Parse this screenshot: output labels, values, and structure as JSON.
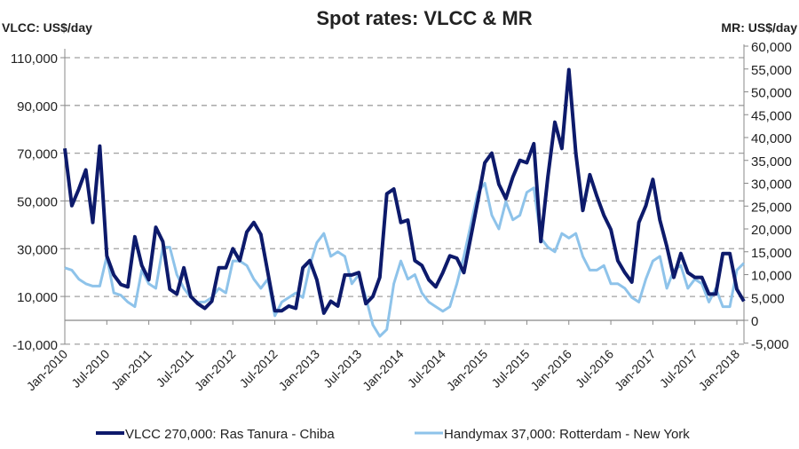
{
  "chart_data": {
    "type": "line",
    "title": "Spot rates: VLCC & MR",
    "ylabel_left": "VLCC: US$/day",
    "ylabel_right": "MR: US$/day",
    "ylim_left": [
      -10000,
      110000
    ],
    "ylim_right": [
      -5000,
      60000
    ],
    "yticks_left": [
      "-10,000",
      "10,000",
      "30,000",
      "50,000",
      "70,000",
      "90,000",
      "110,000"
    ],
    "yticks_left_values": [
      -10000,
      10000,
      30000,
      50000,
      70000,
      90000,
      110000
    ],
    "yticks_right": [
      "-5,000",
      "0",
      "5,000",
      "10,000",
      "15,000",
      "20,000",
      "25,000",
      "30,000",
      "35,000",
      "40,000",
      "45,000",
      "50,000",
      "55,000",
      "60,000"
    ],
    "yticks_right_values": [
      -5000,
      0,
      5000,
      10000,
      15000,
      20000,
      25000,
      30000,
      35000,
      40000,
      45000,
      50000,
      55000,
      60000
    ],
    "xticks": [
      "Jan-2010",
      "Jul-2010",
      "Jan-2011",
      "Jul-2011",
      "Jan-2012",
      "Jul-2012",
      "Jan-2013",
      "Jul-2013",
      "Jan-2014",
      "Jul-2014",
      "Jan-2015",
      "Jul-2015",
      "Jan-2016",
      "Jul-2016",
      "Jan-2017",
      "Jul-2017",
      "Jan-2018"
    ],
    "grid": "horizontal dashed",
    "legend": "bottom",
    "x_start": "Jan-2010",
    "x_frequency": "monthly",
    "series": [
      {
        "name": "VLCC 270,000: Ras Tanura - Chiba",
        "axis": "left",
        "color": "#0d1a6b",
        "values": [
          72000,
          48000,
          55000,
          63000,
          41000,
          73000,
          27000,
          19000,
          15000,
          14000,
          35000,
          23000,
          17000,
          39000,
          33000,
          13000,
          11000,
          22000,
          10000,
          7000,
          5000,
          8000,
          22000,
          22000,
          30000,
          25000,
          37000,
          41000,
          36000,
          20000,
          4000,
          4000,
          6000,
          5000,
          22000,
          25000,
          17000,
          3000,
          8000,
          6000,
          19000,
          19000,
          20000,
          7000,
          10000,
          18000,
          53000,
          55000,
          41000,
          42000,
          25000,
          23000,
          17000,
          14000,
          20000,
          27000,
          26000,
          20000,
          35000,
          50000,
          66000,
          70000,
          57000,
          51000,
          60000,
          67000,
          66000,
          74000,
          33000,
          60000,
          83000,
          72000,
          105000,
          70000,
          46000,
          61000,
          52000,
          44000,
          38000,
          25000,
          20000,
          16000,
          41000,
          48000,
          59000,
          42000,
          31000,
          18000,
          28000,
          20000,
          18000,
          18000,
          11000,
          11000,
          28000,
          28000,
          13000,
          8000
        ]
      },
      {
        "name": "Handymax 37,000: Rotterdam - New York",
        "axis": "right",
        "color": "#8ec3ea",
        "values": [
          11500,
          11000,
          9000,
          8000,
          7500,
          7500,
          14000,
          6000,
          5500,
          4000,
          3000,
          11000,
          8000,
          7000,
          16000,
          16000,
          10000,
          7000,
          5000,
          4000,
          4000,
          5000,
          7000,
          6000,
          13000,
          13000,
          12000,
          9000,
          7000,
          9000,
          1000,
          4000,
          5000,
          6000,
          5000,
          12000,
          17000,
          19000,
          14000,
          15000,
          14000,
          8000,
          10000,
          5000,
          -1000,
          -3500,
          -2000,
          8000,
          13000,
          9000,
          10000,
          6000,
          4000,
          3000,
          2000,
          3000,
          8000,
          14000,
          21000,
          28000,
          30000,
          23000,
          20000,
          26000,
          22000,
          23000,
          28000,
          29000,
          18000,
          16000,
          15000,
          19000,
          18000,
          19000,
          14000,
          11000,
          11000,
          12000,
          8000,
          8000,
          7000,
          5000,
          4000,
          9000,
          13000,
          14000,
          7000,
          11000,
          12000,
          7000,
          9000,
          8000,
          4000,
          7000,
          3000,
          3000,
          11000,
          12500
        ]
      }
    ]
  }
}
